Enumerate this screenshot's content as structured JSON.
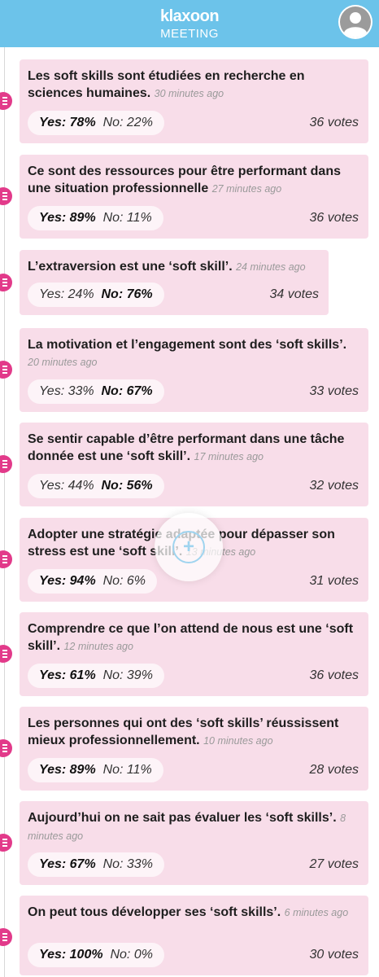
{
  "header": {
    "brand": "klaxoon",
    "subtitle": "MEETING"
  },
  "add_button_label": "+",
  "questions": [
    {
      "text": "Les soft skills sont étudiées en recherche en sciences humaines.",
      "time": "30 minutes ago",
      "yes": "Yes: 78%",
      "no": "No: 22%",
      "votes": "36 votes",
      "winner": "yes"
    },
    {
      "text": "Ce sont des ressources pour être performant dans une situation professionnelle",
      "time": "27 minutes ago",
      "yes": "Yes: 89%",
      "no": "No: 11%",
      "votes": "36 votes",
      "winner": "yes"
    },
    {
      "text": "L’extraversion est une ‘soft skill’.",
      "time": "24 minutes ago",
      "yes": "Yes: 24%",
      "no": "No: 76%",
      "votes": "34 votes",
      "winner": "no"
    },
    {
      "text": "La motivation et l’engagement sont des ‘soft skills’.",
      "time": "20 minutes ago",
      "yes": "Yes: 33%",
      "no": "No: 67%",
      "votes": "33 votes",
      "winner": "no"
    },
    {
      "text": "Se sentir capable d’être performant dans une tâche donnée est une ‘soft skill’.",
      "time": "17 minutes ago",
      "yes": "Yes: 44%",
      "no": "No: 56%",
      "votes": "32 votes",
      "winner": "no"
    },
    {
      "text": "Adopter une stratégie adaptée pour dépasser son stress est une ‘soft skill’.",
      "time": "13 minutes ago",
      "yes": "Yes: 94%",
      "no": "No: 6%",
      "votes": "31 votes",
      "winner": "yes"
    },
    {
      "text": "Comprendre ce que l’on attend de nous est une ‘soft skill’.",
      "time": "12 minutes ago",
      "yes": "Yes: 61%",
      "no": "No: 39%",
      "votes": "36 votes",
      "winner": "yes"
    },
    {
      "text": "Les personnes qui ont des ‘soft skills’ réussissent mieux professionnellement.",
      "time": "10 minutes ago",
      "yes": "Yes: 89%",
      "no": "No: 11%",
      "votes": "28 votes",
      "winner": "yes"
    },
    {
      "text": "Aujourd’hui on ne sait pas évaluer les ‘soft skills’.",
      "time": "8 minutes ago",
      "yes": "Yes: 67%",
      "no": "No: 33%",
      "votes": "27 votes",
      "winner": "yes"
    },
    {
      "text": "On peut tous développer ses ‘soft skills’.",
      "time": "6 minutes ago",
      "yes": "Yes: 100%",
      "no": "No: 0%",
      "votes": "30 votes",
      "winner": "yes"
    }
  ]
}
